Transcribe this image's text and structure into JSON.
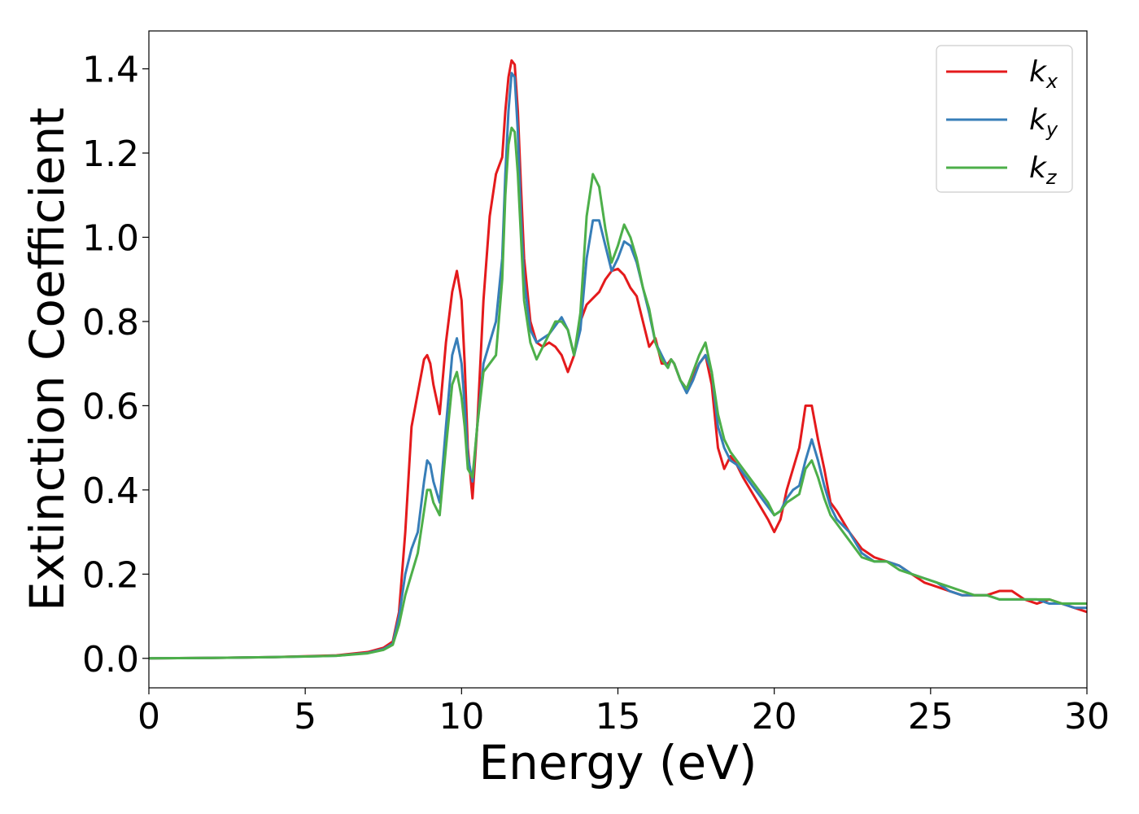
{
  "chart_data": {
    "type": "line",
    "title": "",
    "xlabel": "Energy (eV)",
    "ylabel": "Extinction Coefficient",
    "xlim": [
      0,
      30
    ],
    "ylim": [
      -0.07,
      1.49
    ],
    "xticks": [
      0,
      5,
      10,
      15,
      20,
      25,
      30
    ],
    "xtick_labels": [
      "0",
      "5",
      "10",
      "15",
      "20",
      "25",
      "30"
    ],
    "yticks": [
      0.0,
      0.2,
      0.4,
      0.6,
      0.8,
      1.0,
      1.2,
      1.4
    ],
    "ytick_labels": [
      "0.0",
      "0.2",
      "0.4",
      "0.6",
      "0.8",
      "1.0",
      "1.2",
      "1.4"
    ],
    "grid": false,
    "legend_position": "top-right",
    "series": [
      {
        "name": "k_x",
        "legend_base": "k",
        "legend_sub": "x",
        "color": "#e41a1c",
        "x": [
          0,
          2,
          4,
          6,
          7,
          7.5,
          7.8,
          8.0,
          8.2,
          8.4,
          8.6,
          8.8,
          8.9,
          9.0,
          9.1,
          9.3,
          9.5,
          9.7,
          9.85,
          10.0,
          10.1,
          10.2,
          10.35,
          10.5,
          10.7,
          10.9,
          11.1,
          11.3,
          11.4,
          11.5,
          11.6,
          11.7,
          11.8,
          11.9,
          12.0,
          12.2,
          12.4,
          12.6,
          12.8,
          13.0,
          13.2,
          13.4,
          13.6,
          13.8,
          14.0,
          14.2,
          14.4,
          14.6,
          14.8,
          15.0,
          15.2,
          15.4,
          15.6,
          15.8,
          16.0,
          16.2,
          16.4,
          16.6,
          16.7,
          16.8,
          17.0,
          17.2,
          17.4,
          17.6,
          17.8,
          18.0,
          18.2,
          18.4,
          18.6,
          18.8,
          19.0,
          19.4,
          19.8,
          20.0,
          20.2,
          20.4,
          20.6,
          20.8,
          21.0,
          21.2,
          21.4,
          21.6,
          21.8,
          22.0,
          22.4,
          22.8,
          23.2,
          23.6,
          24.0,
          24.4,
          24.8,
          25.2,
          25.6,
          26.0,
          26.4,
          26.8,
          27.2,
          27.6,
          28.0,
          28.4,
          28.8,
          29.2,
          29.6,
          30.0
        ],
        "values": [
          0,
          0.001,
          0.003,
          0.007,
          0.015,
          0.025,
          0.04,
          0.11,
          0.3,
          0.55,
          0.63,
          0.71,
          0.72,
          0.7,
          0.65,
          0.58,
          0.75,
          0.87,
          0.92,
          0.85,
          0.7,
          0.5,
          0.38,
          0.55,
          0.85,
          1.05,
          1.15,
          1.19,
          1.3,
          1.38,
          1.42,
          1.41,
          1.3,
          1.12,
          0.95,
          0.8,
          0.75,
          0.74,
          0.75,
          0.74,
          0.72,
          0.68,
          0.72,
          0.8,
          0.84,
          0.855,
          0.87,
          0.9,
          0.92,
          0.925,
          0.91,
          0.88,
          0.86,
          0.8,
          0.74,
          0.76,
          0.7,
          0.7,
          0.71,
          0.7,
          0.66,
          0.64,
          0.67,
          0.7,
          0.72,
          0.65,
          0.5,
          0.45,
          0.48,
          0.46,
          0.43,
          0.38,
          0.33,
          0.3,
          0.33,
          0.4,
          0.45,
          0.5,
          0.6,
          0.6,
          0.52,
          0.45,
          0.37,
          0.35,
          0.3,
          0.26,
          0.24,
          0.23,
          0.22,
          0.2,
          0.18,
          0.17,
          0.16,
          0.15,
          0.15,
          0.15,
          0.16,
          0.16,
          0.14,
          0.13,
          0.14,
          0.13,
          0.12,
          0.11
        ]
      },
      {
        "name": "k_y",
        "legend_base": "k",
        "legend_sub": "y",
        "color": "#377eb8",
        "x": [
          0,
          2,
          4,
          6,
          7,
          7.5,
          7.8,
          8.0,
          8.2,
          8.4,
          8.6,
          8.8,
          8.9,
          9.0,
          9.1,
          9.3,
          9.5,
          9.7,
          9.85,
          10.0,
          10.1,
          10.2,
          10.35,
          10.5,
          10.7,
          10.9,
          11.1,
          11.3,
          11.4,
          11.5,
          11.6,
          11.7,
          11.8,
          11.9,
          12.0,
          12.2,
          12.4,
          12.6,
          12.8,
          13.0,
          13.2,
          13.4,
          13.6,
          13.8,
          14.0,
          14.2,
          14.4,
          14.6,
          14.8,
          15.0,
          15.2,
          15.4,
          15.6,
          15.8,
          16.0,
          16.2,
          16.4,
          16.6,
          16.7,
          16.8,
          17.0,
          17.2,
          17.4,
          17.6,
          17.8,
          18.0,
          18.2,
          18.4,
          18.6,
          18.8,
          19.0,
          19.4,
          19.8,
          20.0,
          20.2,
          20.4,
          20.6,
          20.8,
          21.0,
          21.2,
          21.4,
          21.6,
          21.8,
          22.0,
          22.4,
          22.8,
          23.2,
          23.6,
          24.0,
          24.4,
          24.8,
          25.2,
          25.6,
          26.0,
          26.4,
          26.8,
          27.2,
          27.6,
          28.0,
          28.4,
          28.8,
          29.2,
          29.6,
          30.0
        ],
        "values": [
          0,
          0.001,
          0.003,
          0.006,
          0.013,
          0.022,
          0.035,
          0.1,
          0.2,
          0.26,
          0.3,
          0.42,
          0.47,
          0.46,
          0.42,
          0.37,
          0.55,
          0.72,
          0.76,
          0.7,
          0.6,
          0.48,
          0.42,
          0.55,
          0.7,
          0.75,
          0.8,
          0.95,
          1.15,
          1.3,
          1.39,
          1.38,
          1.25,
          1.05,
          0.9,
          0.78,
          0.75,
          0.76,
          0.77,
          0.79,
          0.81,
          0.78,
          0.72,
          0.78,
          0.95,
          1.04,
          1.04,
          0.98,
          0.92,
          0.95,
          0.99,
          0.98,
          0.94,
          0.88,
          0.82,
          0.75,
          0.72,
          0.69,
          0.71,
          0.7,
          0.66,
          0.63,
          0.66,
          0.7,
          0.72,
          0.68,
          0.55,
          0.5,
          0.47,
          0.46,
          0.44,
          0.4,
          0.36,
          0.34,
          0.35,
          0.38,
          0.4,
          0.41,
          0.47,
          0.52,
          0.47,
          0.41,
          0.36,
          0.33,
          0.3,
          0.25,
          0.23,
          0.23,
          0.22,
          0.2,
          0.19,
          0.18,
          0.16,
          0.15,
          0.15,
          0.15,
          0.14,
          0.14,
          0.14,
          0.14,
          0.13,
          0.13,
          0.12,
          0.12
        ]
      },
      {
        "name": "k_z",
        "legend_base": "k",
        "legend_sub": "z",
        "color": "#4daf4a",
        "x": [
          0,
          2,
          4,
          6,
          7,
          7.5,
          7.8,
          8.0,
          8.2,
          8.4,
          8.6,
          8.8,
          8.9,
          9.0,
          9.1,
          9.3,
          9.5,
          9.7,
          9.85,
          10.0,
          10.1,
          10.2,
          10.35,
          10.5,
          10.7,
          10.9,
          11.1,
          11.3,
          11.4,
          11.5,
          11.6,
          11.7,
          11.8,
          11.9,
          12.0,
          12.2,
          12.4,
          12.6,
          12.8,
          13.0,
          13.2,
          13.4,
          13.6,
          13.8,
          14.0,
          14.2,
          14.4,
          14.6,
          14.8,
          15.0,
          15.2,
          15.4,
          15.6,
          15.8,
          16.0,
          16.2,
          16.4,
          16.6,
          16.7,
          16.8,
          17.0,
          17.2,
          17.4,
          17.6,
          17.8,
          18.0,
          18.2,
          18.4,
          18.6,
          18.8,
          19.0,
          19.4,
          19.8,
          20.0,
          20.2,
          20.4,
          20.6,
          20.8,
          21.0,
          21.2,
          21.4,
          21.6,
          21.8,
          22.0,
          22.4,
          22.8,
          23.2,
          23.6,
          24.0,
          24.4,
          24.8,
          25.2,
          25.6,
          26.0,
          26.4,
          26.8,
          27.2,
          27.6,
          28.0,
          28.4,
          28.8,
          29.2,
          29.6,
          30.0
        ],
        "values": [
          0,
          0.001,
          0.003,
          0.006,
          0.012,
          0.02,
          0.032,
          0.08,
          0.15,
          0.2,
          0.25,
          0.35,
          0.4,
          0.4,
          0.37,
          0.34,
          0.5,
          0.65,
          0.68,
          0.62,
          0.55,
          0.45,
          0.43,
          0.55,
          0.68,
          0.7,
          0.72,
          0.9,
          1.1,
          1.22,
          1.26,
          1.25,
          1.15,
          1.0,
          0.85,
          0.75,
          0.71,
          0.74,
          0.77,
          0.8,
          0.8,
          0.78,
          0.72,
          0.82,
          1.05,
          1.15,
          1.12,
          1.02,
          0.94,
          0.98,
          1.03,
          1.0,
          0.95,
          0.88,
          0.83,
          0.75,
          0.71,
          0.69,
          0.71,
          0.7,
          0.66,
          0.64,
          0.68,
          0.72,
          0.75,
          0.68,
          0.58,
          0.52,
          0.49,
          0.47,
          0.45,
          0.41,
          0.37,
          0.34,
          0.35,
          0.37,
          0.38,
          0.39,
          0.45,
          0.47,
          0.43,
          0.38,
          0.34,
          0.32,
          0.28,
          0.24,
          0.23,
          0.23,
          0.21,
          0.2,
          0.19,
          0.18,
          0.17,
          0.16,
          0.15,
          0.15,
          0.14,
          0.14,
          0.14,
          0.14,
          0.14,
          0.13,
          0.13,
          0.13
        ]
      }
    ]
  }
}
